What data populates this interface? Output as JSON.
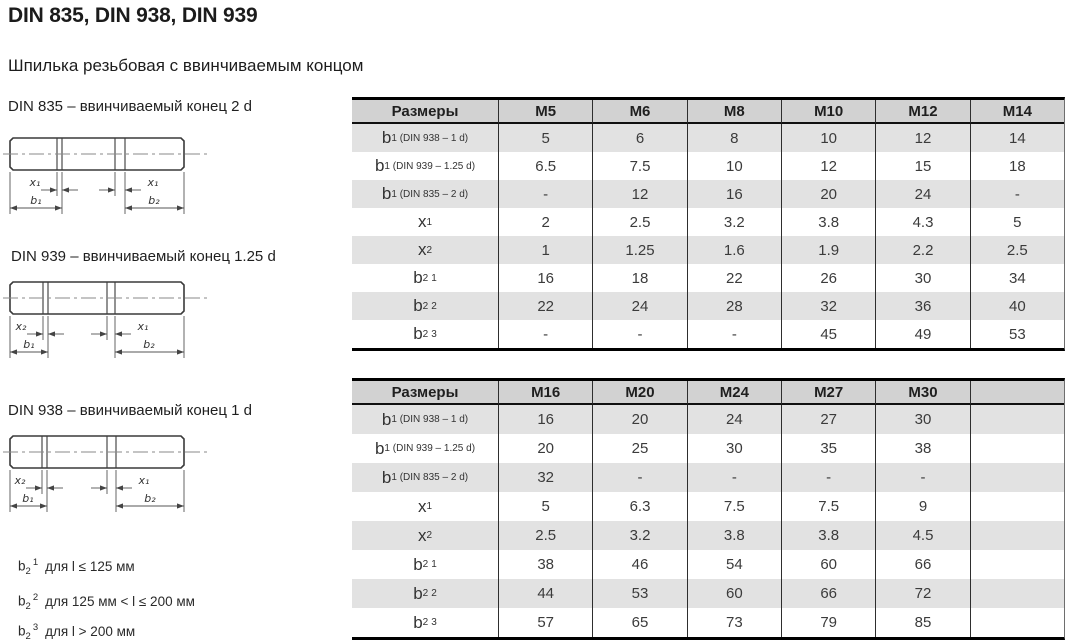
{
  "page": {
    "title": "DIN 835, DIN 938, DIN 939",
    "subtitle": "Шпилька резьбовая с ввинчиваемым концом"
  },
  "drawings": [
    {
      "caption": "DIN 835 – ввинчиваемый конец 2 d",
      "x_left": "x₁",
      "x_right": "x₁",
      "b_left": "b₁",
      "b_right": "b₂"
    },
    {
      "caption": "DIN 939 – ввинчиваемый конец 1.25 d",
      "x_left": "x₂",
      "x_right": "x₁",
      "b_left": "b₁",
      "b_right": "b₂"
    },
    {
      "caption": "DIN 938 – ввинчиваемый конец 1 d",
      "x_left": "x₂",
      "x_right": "x₁",
      "b_left": "b₁",
      "b_right": "b₂"
    }
  ],
  "footnotes": [
    {
      "base": "b",
      "sub": "2",
      "sup": "1",
      "text": "для l ≤ 125 мм"
    },
    {
      "base": "b",
      "sub": "2",
      "sup": "2",
      "text": "для 125 мм < l ≤ 200 мм"
    },
    {
      "base": "b",
      "sub": "2",
      "sup": "3",
      "text": "для l > 200 мм"
    }
  ],
  "tables": [
    {
      "header": [
        "Размеры",
        "M5",
        "M6",
        "M8",
        "M10",
        "M12",
        "M14"
      ],
      "rows": [
        {
          "label": {
            "base": "b",
            "sub": "1 (DIN 938 – 1 d)",
            "sup": ""
          },
          "values": [
            "5",
            "6",
            "8",
            "10",
            "12",
            "14"
          ]
        },
        {
          "label": {
            "base": "b",
            "sub": "1 (DIN 939 – 1.25 d)",
            "sup": ""
          },
          "values": [
            "6.5",
            "7.5",
            "10",
            "12",
            "15",
            "18"
          ]
        },
        {
          "label": {
            "base": "b",
            "sub": "1 (DIN 835 – 2 d)",
            "sup": ""
          },
          "values": [
            "-",
            "12",
            "16",
            "20",
            "24",
            "-"
          ]
        },
        {
          "label": {
            "base": "x",
            "sub": "1",
            "sup": ""
          },
          "values": [
            "2",
            "2.5",
            "3.2",
            "3.8",
            "4.3",
            "5"
          ]
        },
        {
          "label": {
            "base": "x",
            "sub": "2",
            "sup": ""
          },
          "values": [
            "1",
            "1.25",
            "1.6",
            "1.9",
            "2.2",
            "2.5"
          ]
        },
        {
          "label": {
            "base": "b",
            "sub": "2",
            "sup": "1"
          },
          "values": [
            "16",
            "18",
            "22",
            "26",
            "30",
            "34"
          ]
        },
        {
          "label": {
            "base": "b",
            "sub": "2",
            "sup": "2"
          },
          "values": [
            "22",
            "24",
            "28",
            "32",
            "36",
            "40"
          ]
        },
        {
          "label": {
            "base": "b",
            "sub": "2",
            "sup": "3"
          },
          "values": [
            "-",
            "-",
            "-",
            "45",
            "49",
            "53"
          ]
        }
      ]
    },
    {
      "header": [
        "Размеры",
        "M16",
        "M20",
        "M24",
        "M27",
        "M30",
        ""
      ],
      "rows": [
        {
          "label": {
            "base": "b",
            "sub": "1 (DIN 938 – 1 d)",
            "sup": ""
          },
          "values": [
            "16",
            "20",
            "24",
            "27",
            "30",
            ""
          ]
        },
        {
          "label": {
            "base": "b",
            "sub": "1 (DIN 939 – 1.25 d)",
            "sup": ""
          },
          "values": [
            "20",
            "25",
            "30",
            "35",
            "38",
            ""
          ]
        },
        {
          "label": {
            "base": "b",
            "sub": "1 (DIN 835 – 2 d)",
            "sup": ""
          },
          "values": [
            "32",
            "-",
            "-",
            "-",
            "-",
            ""
          ]
        },
        {
          "label": {
            "base": "x",
            "sub": "1",
            "sup": ""
          },
          "values": [
            "5",
            "6.3",
            "7.5",
            "7.5",
            "9",
            ""
          ]
        },
        {
          "label": {
            "base": "x",
            "sub": "2",
            "sup": ""
          },
          "values": [
            "2.5",
            "3.2",
            "3.8",
            "3.8",
            "4.5",
            ""
          ]
        },
        {
          "label": {
            "base": "b",
            "sub": "2",
            "sup": "1"
          },
          "values": [
            "38",
            "46",
            "54",
            "60",
            "66",
            ""
          ]
        },
        {
          "label": {
            "base": "b",
            "sub": "2",
            "sup": "2"
          },
          "values": [
            "44",
            "53",
            "60",
            "66",
            "72",
            ""
          ]
        },
        {
          "label": {
            "base": "b",
            "sub": "2",
            "sup": "3"
          },
          "values": [
            "57",
            "65",
            "73",
            "79",
            "85",
            ""
          ]
        }
      ]
    }
  ],
  "colors": {
    "header_bg": "#d2d2d2",
    "stripe_bg": "#e2e2e2",
    "border": "#000000",
    "text": "#3b3b3b"
  }
}
